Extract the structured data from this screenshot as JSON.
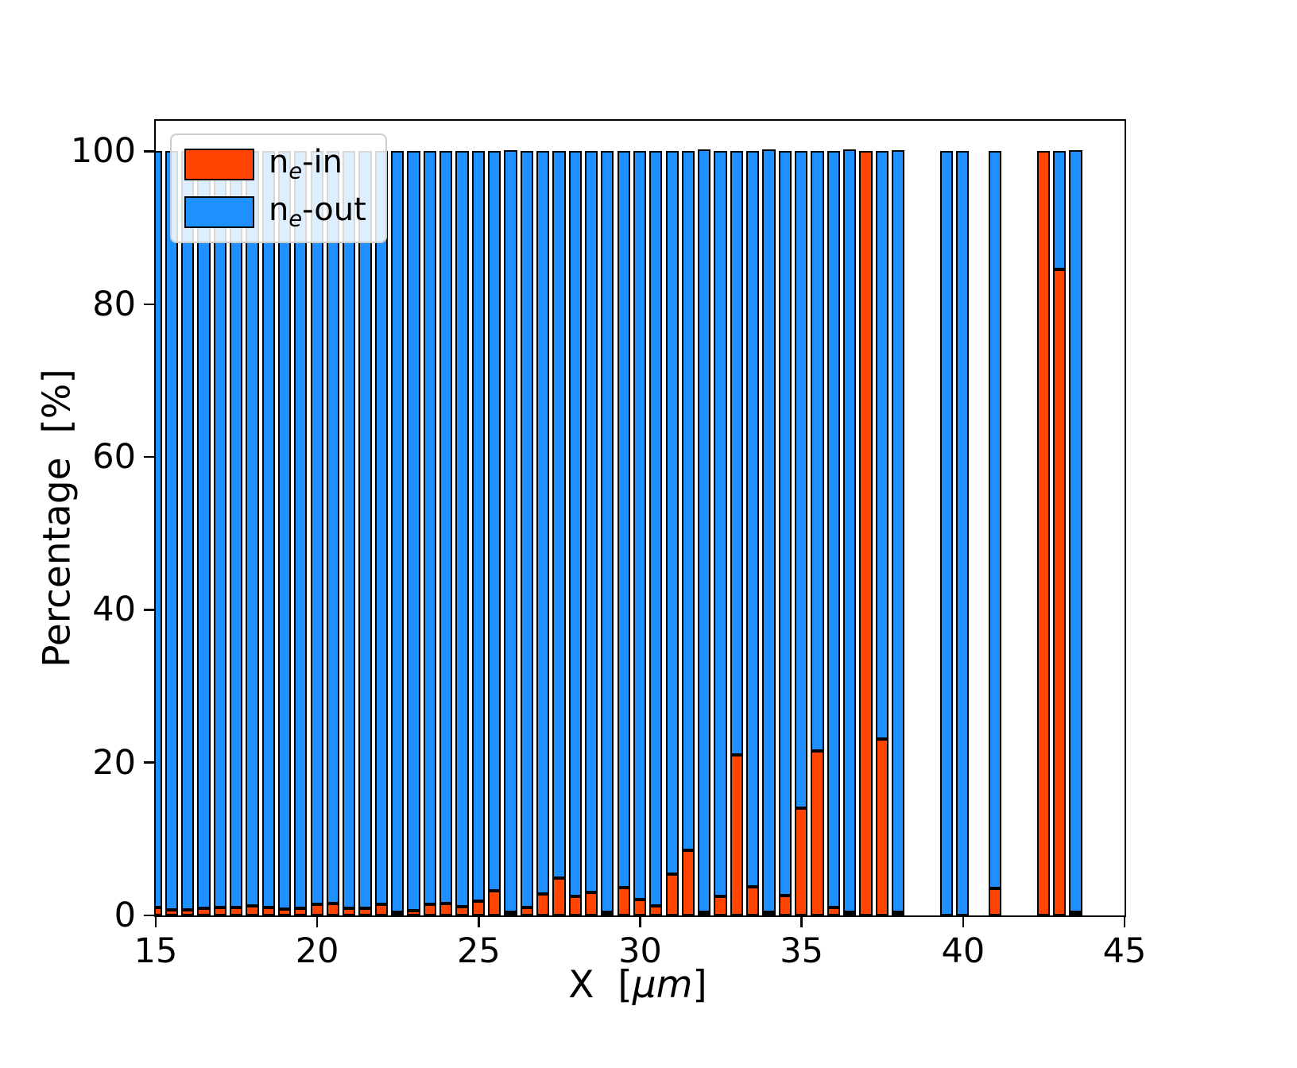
{
  "legend": {
    "items": [
      {
        "pre": "n",
        "sub": "e",
        "post": "-in",
        "color": "#ff4500"
      },
      {
        "pre": "n",
        "sub": "e",
        "post": "-out",
        "color": "#1e90ff"
      }
    ]
  },
  "axes": {
    "ylabel": "Percentage  [%]",
    "xlabel_pre": "X  [",
    "xlabel_italic": "μm",
    "xlabel_post": "]"
  },
  "chart_data": {
    "type": "bar",
    "stacked": true,
    "title": "",
    "xlabel": "X [μm]",
    "ylabel": "Percentage [%]",
    "legend_position": "upper left",
    "grid": false,
    "xlim": [
      15,
      45
    ],
    "ylim": [
      0,
      104
    ],
    "x_ticks": [
      15,
      20,
      25,
      30,
      35,
      40,
      45
    ],
    "y_ticks": [
      0,
      20,
      40,
      60,
      80,
      100
    ],
    "bar_width_x": 0.4,
    "colors": {
      "in": "#ff4500",
      "out": "#1e90ff",
      "edge": "#000000"
    },
    "series": [
      {
        "name": "ne-in"
      },
      {
        "name": "ne-out"
      }
    ],
    "x": [
      15,
      15.5,
      16,
      16.5,
      17,
      17.5,
      18,
      18.5,
      19,
      19.5,
      20,
      20.5,
      21,
      21.5,
      22,
      22.5,
      23,
      23.5,
      24,
      24.5,
      25,
      25.5,
      26,
      26.5,
      27,
      27.5,
      28,
      28.5,
      29,
      29.5,
      30,
      30.5,
      31,
      31.5,
      32,
      32.5,
      33,
      33.5,
      34,
      34.5,
      35,
      35.5,
      36,
      36.5,
      37,
      37.5,
      38,
      39.5,
      40,
      41,
      42.5,
      43,
      43.5
    ],
    "in_pct": [
      1.0,
      0.7,
      0.7,
      0.9,
      1.0,
      1.0,
      1.2,
      1.0,
      0.8,
      0.9,
      1.4,
      1.5,
      0.9,
      0.9,
      1.4,
      0.4,
      0.6,
      1.4,
      1.5,
      1.1,
      1.8,
      3.2,
      0.3,
      1.0,
      2.8,
      4.8,
      2.4,
      3.0,
      0.4,
      3.6,
      2.0,
      1.2,
      5.4,
      8.5,
      0.2,
      2.4,
      21.0,
      3.7,
      0.2,
      2.5,
      14.0,
      21.5,
      1.0,
      0.2,
      100.0,
      23.0,
      0.3,
      0.0,
      0.0,
      3.5,
      100.0,
      84.5,
      0.3
    ],
    "out_pct": [
      99.0,
      99.3,
      99.3,
      99.1,
      99.0,
      99.0,
      98.8,
      99.0,
      99.2,
      99.1,
      98.6,
      98.5,
      99.1,
      99.1,
      98.6,
      99.6,
      99.4,
      98.6,
      98.5,
      98.9,
      98.2,
      96.8,
      99.7,
      99.0,
      97.2,
      95.2,
      97.6,
      97.0,
      99.6,
      96.4,
      98.0,
      98.8,
      94.6,
      91.5,
      99.8,
      97.6,
      79.0,
      96.3,
      99.8,
      97.5,
      86.0,
      78.5,
      99.0,
      99.8,
      0.0,
      77.0,
      99.7,
      100.0,
      100.0,
      96.5,
      0.0,
      15.5,
      99.7
    ]
  }
}
